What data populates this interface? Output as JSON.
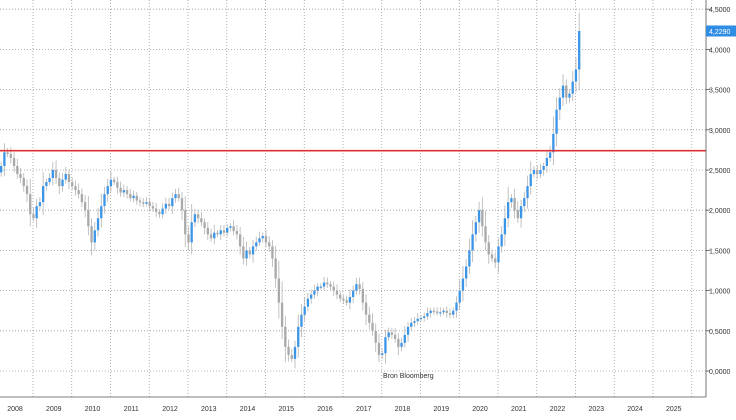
{
  "chart_data": {
    "type": "candlestick",
    "title": "",
    "xlabel": "",
    "ylabel": "",
    "source": "Bron Bloomberg",
    "frequency": "monthly",
    "x_start": "2007-11",
    "ylim": [
      -0.3,
      4.5
    ],
    "y_ticks": [
      "0,0000",
      "0,5000",
      "1,0000",
      "1,5000",
      "2,0000",
      "2,5000",
      "3,0000",
      "3,5000",
      "4,0000",
      "4,5000"
    ],
    "x_labels": [
      "2008",
      "2009",
      "2010",
      "2011",
      "2012",
      "2013",
      "2014",
      "2015",
      "2016",
      "2017",
      "2018",
      "2019",
      "2020",
      "2021",
      "2022",
      "2023",
      "2024",
      "2025"
    ],
    "reference_line": {
      "value": 2.74,
      "color": "#e03030"
    },
    "last_value_label": "4,2290",
    "last_value": 4.229,
    "grid": true,
    "y_axis_position": "right",
    "colors": {
      "up": "#3c96e8",
      "down": "#a9a9a9",
      "wick": "#b3b3b3",
      "grid": "#9a9a9a",
      "badge": "#2f8de4"
    },
    "closes": [
      2.55,
      2.72,
      2.7,
      2.65,
      2.55,
      2.45,
      2.4,
      2.3,
      2.2,
      1.95,
      1.9,
      2.05,
      2.1,
      2.3,
      2.35,
      2.4,
      2.5,
      2.4,
      2.3,
      2.38,
      2.45,
      2.35,
      2.3,
      2.25,
      2.2,
      2.1,
      2.0,
      1.8,
      1.6,
      1.75,
      1.9,
      2.05,
      2.2,
      2.3,
      2.38,
      2.35,
      2.28,
      2.22,
      2.25,
      2.2,
      2.15,
      2.18,
      2.12,
      2.1,
      2.08,
      2.1,
      2.05,
      2.02,
      1.98,
      1.95,
      2.02,
      2.08,
      2.05,
      2.15,
      2.2,
      2.15,
      2.0,
      1.7,
      1.6,
      1.85,
      1.95,
      1.9,
      1.85,
      1.78,
      1.7,
      1.65,
      1.72,
      1.7,
      1.75,
      1.72,
      1.78,
      1.8,
      1.74,
      1.7,
      1.55,
      1.4,
      1.5,
      1.45,
      1.55,
      1.6,
      1.65,
      1.68,
      1.6,
      1.55,
      1.4,
      1.15,
      0.85,
      0.55,
      0.3,
      0.2,
      0.15,
      0.3,
      0.55,
      0.7,
      0.8,
      0.9,
      0.95,
      1.0,
      1.05,
      1.05,
      1.1,
      1.08,
      1.05,
      1.0,
      0.95,
      0.9,
      0.88,
      0.85,
      0.92,
      1.0,
      1.08,
      1.02,
      0.85,
      0.7,
      0.6,
      0.5,
      0.35,
      0.2,
      0.22,
      0.42,
      0.48,
      0.45,
      0.4,
      0.3,
      0.35,
      0.45,
      0.55,
      0.6,
      0.62,
      0.65,
      0.66,
      0.68,
      0.72,
      0.75,
      0.74,
      0.72,
      0.73,
      0.75,
      0.72,
      0.7,
      0.75,
      0.85,
      1.0,
      1.15,
      1.3,
      1.5,
      1.7,
      1.85,
      2.0,
      1.8,
      1.6,
      1.45,
      1.4,
      1.35,
      1.55,
      1.7,
      1.9,
      2.1,
      2.15,
      2.0,
      1.9,
      2.05,
      2.15,
      2.3,
      2.45,
      2.5,
      2.45,
      2.5,
      2.55,
      2.65,
      2.72,
      2.95,
      3.25,
      3.4,
      3.55,
      3.4,
      3.45,
      3.6,
      3.75,
      4.229
    ]
  }
}
